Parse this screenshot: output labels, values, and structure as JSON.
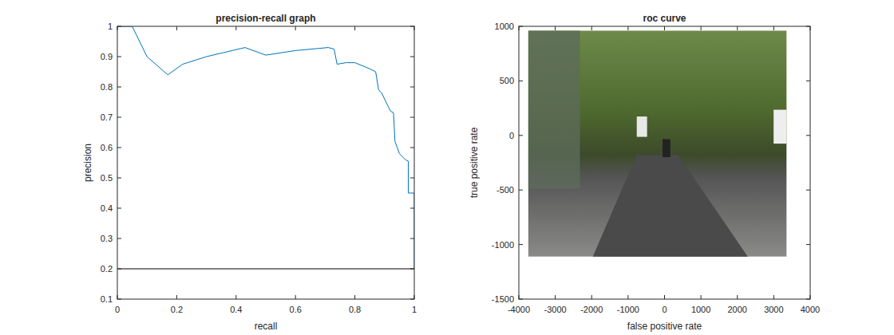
{
  "chart_data": [
    {
      "type": "line",
      "title": "precision-recall graph",
      "x_label": "recall",
      "y_label": "precision",
      "xlim": [
        0,
        1
      ],
      "ylim": [
        0.1,
        1
      ],
      "xticks": [
        0,
        0.2,
        0.4,
        0.6,
        0.8,
        1
      ],
      "yticks": [
        0.1,
        0.2,
        0.3,
        0.4,
        0.5,
        0.6,
        0.7,
        0.8,
        0.9,
        1
      ],
      "series": [
        {
          "color": "#0072bd",
          "x": [
            0,
            0.05,
            0.1,
            0.17,
            0.22,
            0.3,
            0.43,
            0.5,
            0.6,
            0.71,
            0.73,
            0.74,
            0.77,
            0.8,
            0.85,
            0.87,
            0.88,
            0.89,
            0.91,
            0.92,
            0.93,
            0.935,
            0.95,
            0.97,
            0.98,
            0.98,
            1,
            1
          ],
          "values": [
            1,
            1,
            0.9,
            0.84,
            0.875,
            0.9,
            0.93,
            0.905,
            0.92,
            0.93,
            0.925,
            0.875,
            0.88,
            0.88,
            0.86,
            0.85,
            0.79,
            0.78,
            0.74,
            0.72,
            0.715,
            0.62,
            0.58,
            0.56,
            0.555,
            0.45,
            0.45,
            0.2
          ]
        },
        {
          "color": "#000000",
          "x": [
            0,
            1
          ],
          "values": [
            0.2,
            0.2
          ]
        }
      ]
    },
    {
      "type": "image",
      "title": "roc curve",
      "x_label": "false positive rate",
      "y_label": "true positive rate",
      "xlim": [
        -4000,
        4000
      ],
      "ylim": [
        -1500,
        1000
      ],
      "xticks": [
        -4000,
        -3000,
        -2000,
        -1000,
        0,
        1000,
        2000,
        3000,
        4000
      ],
      "yticks": [
        -1500,
        -1000,
        -500,
        0,
        500,
        1000
      ],
      "image": {
        "x": [
          -3740,
          3350
        ],
        "y": [
          -1110,
          960
        ]
      }
    }
  ]
}
